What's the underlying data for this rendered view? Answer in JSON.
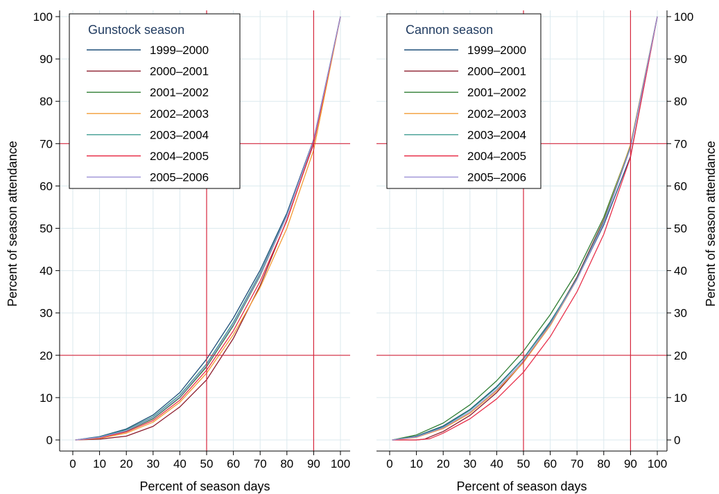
{
  "figure": {
    "colors": {
      "grid": "#dbe9ee",
      "reference_line": "#d7263d",
      "legend_title": "#1f3a5f",
      "axis": "#000000"
    }
  },
  "chart_data": [
    {
      "type": "line",
      "title": "Gunstock season",
      "xlabel": "Percent of season days",
      "ylabel": "Percent of season attendance",
      "xlim": [
        0,
        100
      ],
      "ylim": [
        0,
        100
      ],
      "xticks": [
        0,
        10,
        20,
        30,
        40,
        50,
        60,
        70,
        80,
        90,
        100
      ],
      "yticks": [
        0,
        10,
        20,
        30,
        40,
        50,
        60,
        70,
        80,
        90,
        100
      ],
      "y_axis_side": "left",
      "grid": true,
      "legend_position": "top-left",
      "reference_lines": {
        "x": [
          50,
          90
        ],
        "y": [
          20,
          70
        ]
      },
      "series": [
        {
          "name": "1999–2000",
          "color": "#1d4e79",
          "x": [
            1,
            10,
            20,
            30,
            40,
            50,
            60,
            70,
            80,
            90,
            100
          ],
          "y": [
            0,
            0.8,
            2.6,
            5.9,
            11.2,
            19.1,
            28.8,
            40.1,
            53.6,
            71.0,
            100
          ]
        },
        {
          "name": "2000–2001",
          "color": "#8b1a2b",
          "x": [
            1,
            10,
            20,
            30,
            40,
            50,
            60,
            70,
            80,
            90,
            100
          ],
          "y": [
            0,
            0.2,
            0.9,
            3.2,
            7.8,
            14.2,
            24.0,
            36.5,
            52.0,
            70.0,
            100
          ]
        },
        {
          "name": "2001–2002",
          "color": "#2e7d32",
          "x": [
            1,
            10,
            20,
            30,
            40,
            50,
            60,
            70,
            80,
            90,
            100
          ],
          "y": [
            0,
            0.6,
            2.1,
            5.0,
            10.0,
            17.3,
            27.0,
            38.8,
            53.0,
            70.8,
            100
          ]
        },
        {
          "name": "2002–2003",
          "color": "#f39c34",
          "x": [
            1,
            10,
            20,
            30,
            40,
            50,
            60,
            70,
            80,
            90,
            100
          ],
          "y": [
            0,
            0.4,
            1.6,
            4.2,
            8.9,
            15.8,
            24.9,
            36.0,
            50.0,
            68.5,
            100
          ]
        },
        {
          "name": "2003–2004",
          "color": "#3c9a8f",
          "x": [
            1,
            10,
            20,
            30,
            40,
            50,
            60,
            70,
            80,
            90,
            100
          ],
          "y": [
            0,
            0.7,
            2.4,
            5.5,
            10.6,
            18.0,
            27.8,
            39.4,
            53.2,
            70.6,
            100
          ]
        },
        {
          "name": "2004–2005",
          "color": "#e8304a",
          "x": [
            1,
            10,
            20,
            30,
            40,
            50,
            60,
            70,
            80,
            90,
            100
          ],
          "y": [
            0,
            0.5,
            1.9,
            4.6,
            9.4,
            16.5,
            25.8,
            37.5,
            51.8,
            70.2,
            100
          ]
        },
        {
          "name": "2005–2006",
          "color": "#9b8fd6",
          "x": [
            1,
            10,
            20,
            30,
            40,
            50,
            60,
            70,
            80,
            90,
            100
          ],
          "y": [
            0,
            0.6,
            2.2,
            5.2,
            10.2,
            17.6,
            27.3,
            39.0,
            53.0,
            70.9,
            100
          ]
        }
      ]
    },
    {
      "type": "line",
      "title": "Cannon season",
      "xlabel": "Percent of season days",
      "ylabel": "Percent of season attendance",
      "xlim": [
        0,
        100
      ],
      "ylim": [
        0,
        100
      ],
      "xticks": [
        0,
        10,
        20,
        30,
        40,
        50,
        60,
        70,
        80,
        90,
        100
      ],
      "yticks": [
        0,
        10,
        20,
        30,
        40,
        50,
        60,
        70,
        80,
        90,
        100
      ],
      "y_axis_side": "right",
      "grid": true,
      "legend_position": "top-left",
      "reference_lines": {
        "x": [
          50,
          90
        ],
        "y": [
          20,
          70
        ]
      },
      "series": [
        {
          "name": "1999–2000",
          "color": "#1d4e79",
          "x": [
            1,
            10,
            20,
            30,
            40,
            50,
            60,
            70,
            80,
            90,
            100
          ],
          "y": [
            0,
            0.9,
            3.3,
            7.2,
            12.6,
            19.3,
            27.9,
            38.0,
            50.8,
            67.0,
            100
          ]
        },
        {
          "name": "2000–2001",
          "color": "#8b1a2b",
          "x": [
            1,
            10,
            13,
            20,
            30,
            40,
            50,
            60,
            70,
            80,
            90,
            100
          ],
          "y": [
            0,
            0,
            0.2,
            2.0,
            5.8,
            11.2,
            18.4,
            27.5,
            38.5,
            52.0,
            69.5,
            100
          ]
        },
        {
          "name": "2001–2002",
          "color": "#2e7d32",
          "x": [
            1,
            10,
            20,
            30,
            40,
            50,
            60,
            70,
            80,
            90,
            100
          ],
          "y": [
            0,
            1.2,
            4.0,
            8.3,
            14.0,
            21.0,
            29.6,
            39.7,
            52.6,
            69.5,
            100
          ]
        },
        {
          "name": "2002–2003",
          "color": "#f39c34",
          "x": [
            1,
            10,
            20,
            30,
            40,
            50,
            60,
            70,
            80,
            90,
            100
          ],
          "y": [
            0,
            0.6,
            2.7,
            6.3,
            11.6,
            18.3,
            27.0,
            37.9,
            51.8,
            69.8,
            100
          ]
        },
        {
          "name": "2003–2004",
          "color": "#3c9a8f",
          "x": [
            1,
            10,
            20,
            30,
            40,
            50,
            60,
            70,
            80,
            90,
            100
          ],
          "y": [
            0,
            0.8,
            3.1,
            7.0,
            12.4,
            19.2,
            27.7,
            38.2,
            51.6,
            69.4,
            100
          ]
        },
        {
          "name": "2004–2005",
          "color": "#e8304a",
          "x": [
            1,
            10,
            15,
            20,
            30,
            40,
            50,
            60,
            70,
            80,
            90,
            100
          ],
          "y": [
            0,
            0,
            0.3,
            1.6,
            5.0,
            9.7,
            16.0,
            24.4,
            35.0,
            48.6,
            66.8,
            100
          ]
        },
        {
          "name": "2005–2006",
          "color": "#9b8fd6",
          "x": [
            1,
            10,
            20,
            30,
            40,
            50,
            60,
            70,
            80,
            90,
            100
          ],
          "y": [
            0,
            0.7,
            2.9,
            6.6,
            11.9,
            18.7,
            27.3,
            37.9,
            51.2,
            69.0,
            100
          ]
        }
      ]
    }
  ]
}
